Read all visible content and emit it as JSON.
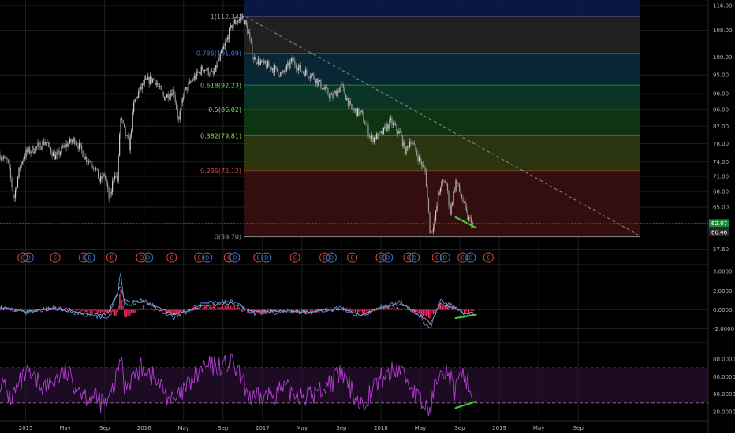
{
  "colors": {
    "background": "#000000",
    "grid": "#1f1f1f",
    "candle_up": "#cfcfcf",
    "candle_down": "#9a9a9a",
    "macd_line": "#5b8fd9",
    "signal_line": "#d9d9d9",
    "histogram": "#ff2d6f",
    "rsi": "#b13ed1",
    "divergence": "#3ed13e",
    "trendline": "#8a8a8a",
    "event_marker": "#e0443a",
    "dividend_marker": "#3a7bd5",
    "price_tag": "#1f8a3a"
  },
  "chart_data": [
    {
      "type": "candlestick",
      "panel": "price",
      "y_ticks": [
        "116.00",
        "108.00",
        "100.00",
        "95.00",
        "90.00",
        "86.00",
        "82.00",
        "78.00",
        "74.00",
        "71.00",
        "68.00",
        "65.00",
        "62.00",
        "57.60"
      ],
      "y_tick_values": [
        116,
        108,
        100,
        95,
        90,
        86,
        82,
        78,
        74,
        71,
        68,
        65,
        62,
        57.6
      ],
      "ylim": [
        56.5,
        116.5
      ],
      "scale": "log",
      "x_ticks": [
        "2015",
        "May",
        "Sep",
        "2016",
        "May",
        "Sep",
        "2017",
        "May",
        "Sep",
        "2018",
        "May",
        "Sep",
        "2019",
        "May",
        "Sep"
      ],
      "x_tick_months": [
        0,
        4,
        8,
        12,
        16,
        20,
        24,
        28,
        32,
        36,
        40,
        44,
        48,
        52,
        56
      ],
      "xlim_months": [
        -2.6,
        62.3
      ],
      "last_price_tags": [
        "62.07",
        "60.46"
      ],
      "last_price_values": [
        62.07,
        60.46
      ],
      "price_path": [
        [
          -2.6,
          75.5
        ],
        [
          -1.8,
          74
        ],
        [
          -1.2,
          66.5
        ],
        [
          -0.6,
          73
        ],
        [
          0,
          76
        ],
        [
          1,
          77
        ],
        [
          2,
          78.5
        ],
        [
          3,
          75
        ],
        [
          4,
          77.5
        ],
        [
          5,
          79
        ],
        [
          6,
          75
        ],
        [
          7,
          73
        ],
        [
          7.5,
          70
        ],
        [
          8,
          71.5
        ],
        [
          8.5,
          66
        ],
        [
          9,
          72
        ],
        [
          9.3,
          70
        ],
        [
          9.6,
          84
        ],
        [
          10,
          81
        ],
        [
          10.5,
          77
        ],
        [
          11,
          88
        ],
        [
          12,
          93
        ],
        [
          13,
          94
        ],
        [
          14,
          89
        ],
        [
          15,
          91
        ],
        [
          15.5,
          83
        ],
        [
          16,
          90
        ],
        [
          17,
          94
        ],
        [
          18,
          97
        ],
        [
          19,
          95
        ],
        [
          20,
          102
        ],
        [
          21,
          110
        ],
        [
          22,
          112.3
        ],
        [
          22.6,
          107
        ],
        [
          23,
          100
        ],
        [
          24,
          98
        ],
        [
          25,
          97
        ],
        [
          26,
          95
        ],
        [
          27,
          99
        ],
        [
          28,
          96
        ],
        [
          29,
          95
        ],
        [
          30,
          92
        ],
        [
          31,
          89
        ],
        [
          32,
          92
        ],
        [
          33,
          86
        ],
        [
          34,
          85
        ],
        [
          35,
          79
        ],
        [
          36,
          80
        ],
        [
          37,
          83
        ],
        [
          38,
          80
        ],
        [
          38.5,
          76
        ],
        [
          39,
          79
        ],
        [
          40,
          74
        ],
        [
          40.5,
          72
        ],
        [
          41,
          60
        ],
        [
          41.5,
          63
        ],
        [
          42,
          69
        ],
        [
          42.6,
          70
        ],
        [
          43,
          64
        ],
        [
          43.6,
          70
        ],
        [
          44,
          68
        ],
        [
          44.8,
          63
        ],
        [
          45.3,
          62
        ]
      ],
      "fibonacci": [
        {
          "label": "1(112.34)",
          "value": 112.34,
          "band_color": "#0a1a4a",
          "line_color": "#8a8a8a",
          "label_color": "#9a9a9a"
        },
        {
          "label": "0.786(101.09)",
          "value": 101.09,
          "band_color": "#242424",
          "line_color": "#3a7bd5",
          "label_color": "#3a7bd5"
        },
        {
          "label": "0.618(92.23)",
          "value": 92.23,
          "band_color": "#0a2a3a",
          "line_color": "#2fbf5f",
          "label_color": "#6fe36f"
        },
        {
          "label": "0.5(86.02)",
          "value": 86.02,
          "band_color": "#0a3a2a",
          "line_color": "#2fbf5f",
          "label_color": "#6fe36f"
        },
        {
          "label": "0.382(79.81)",
          "value": 79.81,
          "band_color": "#0f3a14",
          "line_color": "#9ad94a",
          "label_color": "#9ad94a"
        },
        {
          "label": "0.236(72.12)",
          "value": 72.12,
          "band_color": "#2f3a0f",
          "line_color": "#d9443a",
          "label_color": "#d9443a"
        },
        {
          "label": "0(59.70)",
          "value": 59.7,
          "band_color": "#3a0f0f",
          "line_color": "#8a8a8a",
          "label_color": "#9a9a9a"
        }
      ],
      "fib_x_months": [
        22.1,
        62.3
      ],
      "trendline": {
        "from": [
          22.3,
          112.3
        ],
        "to": [
          62.1,
          60.0
        ]
      },
      "divergence": {
        "from": [
          43.5,
          63.2
        ],
        "to": [
          45.7,
          61.2
        ]
      },
      "event_markers": [
        {
          "label": "E",
          "kind": "earnings",
          "x": -0.3
        },
        {
          "label": "D",
          "kind": "dividend",
          "x": 0.3
        },
        {
          "label": "E",
          "kind": "earnings",
          "x": 3
        },
        {
          "label": "E",
          "kind": "earnings",
          "x": 5.9
        },
        {
          "label": "D",
          "kind": "dividend",
          "x": 6.5
        },
        {
          "label": "E",
          "kind": "earnings",
          "x": 8.7
        },
        {
          "label": "E",
          "kind": "earnings",
          "x": 11.7
        },
        {
          "label": "D",
          "kind": "dividend",
          "x": 12.4
        },
        {
          "label": "E",
          "kind": "earnings",
          "x": 14.8
        },
        {
          "label": "E",
          "kind": "earnings",
          "x": 17.6
        },
        {
          "label": "D",
          "kind": "dividend",
          "x": 18.4
        },
        {
          "label": "E",
          "kind": "earnings",
          "x": 20.6
        },
        {
          "label": "D",
          "kind": "dividend",
          "x": 21.2
        },
        {
          "label": "E",
          "kind": "earnings",
          "x": 23.6
        },
        {
          "label": "D",
          "kind": "dividend",
          "x": 24.4
        },
        {
          "label": "E",
          "kind": "earnings",
          "x": 27.3
        },
        {
          "label": "E",
          "kind": "earnings",
          "x": 30.3
        },
        {
          "label": "D",
          "kind": "dividend",
          "x": 31
        },
        {
          "label": "E",
          "kind": "earnings",
          "x": 33.1
        },
        {
          "label": "E",
          "kind": "earnings",
          "x": 36
        },
        {
          "label": "D",
          "kind": "dividend",
          "x": 36.7
        },
        {
          "label": "E",
          "kind": "earnings",
          "x": 38.8
        },
        {
          "label": "D",
          "kind": "dividend",
          "x": 39.4
        },
        {
          "label": "E",
          "kind": "earnings",
          "x": 41.7
        },
        {
          "label": "D",
          "kind": "dividend",
          "x": 42.5
        },
        {
          "label": "E",
          "kind": "earnings",
          "x": 44.3
        },
        {
          "label": "D",
          "kind": "dividend",
          "x": 45.1
        },
        {
          "label": "E",
          "kind": "earnings",
          "x": 46.9
        }
      ]
    },
    {
      "type": "line",
      "panel": "macd",
      "y_ticks": [
        "4.0000",
        "2.0000",
        "0.0000",
        "-2.0000"
      ],
      "y_tick_values": [
        4,
        2,
        0,
        -2
      ],
      "ylim": [
        -3.2,
        4.6
      ],
      "series_macd": [
        [
          -2.6,
          0.3
        ],
        [
          0,
          -0.3
        ],
        [
          3,
          0.2
        ],
        [
          6,
          -0.5
        ],
        [
          8.3,
          -0.8
        ],
        [
          9.3,
          1.5
        ],
        [
          9.6,
          4.1
        ],
        [
          10,
          0.5
        ],
        [
          12,
          1
        ],
        [
          15,
          -0.8
        ],
        [
          18,
          0.6
        ],
        [
          21,
          0.9
        ],
        [
          23,
          -0.4
        ],
        [
          26,
          -0.2
        ],
        [
          29,
          -0.3
        ],
        [
          32,
          0.2
        ],
        [
          34,
          -0.7
        ],
        [
          36,
          0.3
        ],
        [
          38,
          0.8
        ],
        [
          40,
          -0.8
        ],
        [
          41,
          -2.1
        ],
        [
          42,
          1.1
        ],
        [
          43.5,
          0.3
        ],
        [
          44.5,
          -0.6
        ],
        [
          45.5,
          -0.4
        ]
      ],
      "series_signal": [
        [
          -2.6,
          0.2
        ],
        [
          0,
          -0.2
        ],
        [
          3,
          0.1
        ],
        [
          6,
          -0.4
        ],
        [
          8.3,
          -0.5
        ],
        [
          9.6,
          2.5
        ],
        [
          10,
          1
        ],
        [
          12,
          0.8
        ],
        [
          15,
          -0.5
        ],
        [
          18,
          0.4
        ],
        [
          21,
          0.7
        ],
        [
          23,
          -0.2
        ],
        [
          26,
          -0.1
        ],
        [
          29,
          -0.2
        ],
        [
          32,
          0.1
        ],
        [
          34,
          -0.5
        ],
        [
          36,
          0.2
        ],
        [
          38,
          0.6
        ],
        [
          40,
          -0.5
        ],
        [
          41,
          -1.5
        ],
        [
          42,
          0.6
        ],
        [
          43.5,
          0.2
        ],
        [
          44.5,
          -0.4
        ],
        [
          45.5,
          -0.3
        ]
      ],
      "divergence": {
        "from": [
          43.5,
          -0.9
        ],
        "to": [
          45.7,
          -0.5
        ]
      }
    },
    {
      "type": "line",
      "panel": "rsi",
      "y_ticks": [
        "80.0000",
        "60.0000",
        "40.0000",
        "20.0000"
      ],
      "y_tick_values": [
        80,
        60,
        40,
        20
      ],
      "ylim": [
        12,
        96
      ],
      "levels": [
        70,
        30
      ],
      "series": [
        [
          -2.6,
          55
        ],
        [
          -1.5,
          35
        ],
        [
          0,
          62
        ],
        [
          2,
          48
        ],
        [
          4,
          65
        ],
        [
          6,
          40
        ],
        [
          8.3,
          28
        ],
        [
          9.3,
          60
        ],
        [
          9.6,
          88
        ],
        [
          10,
          50
        ],
        [
          12,
          72
        ],
        [
          15,
          30
        ],
        [
          18,
          70
        ],
        [
          21,
          74
        ],
        [
          23,
          32
        ],
        [
          26,
          45
        ],
        [
          29,
          38
        ],
        [
          32,
          62
        ],
        [
          34,
          28
        ],
        [
          36,
          58
        ],
        [
          38,
          70
        ],
        [
          40,
          30
        ],
        [
          41,
          22
        ],
        [
          42,
          76
        ],
        [
          43,
          60
        ],
        [
          43.5,
          42
        ],
        [
          44.5,
          65
        ],
        [
          45.3,
          34
        ]
      ],
      "divergence": {
        "from": [
          43.5,
          24
        ],
        "to": [
          45.7,
          32
        ]
      }
    }
  ]
}
